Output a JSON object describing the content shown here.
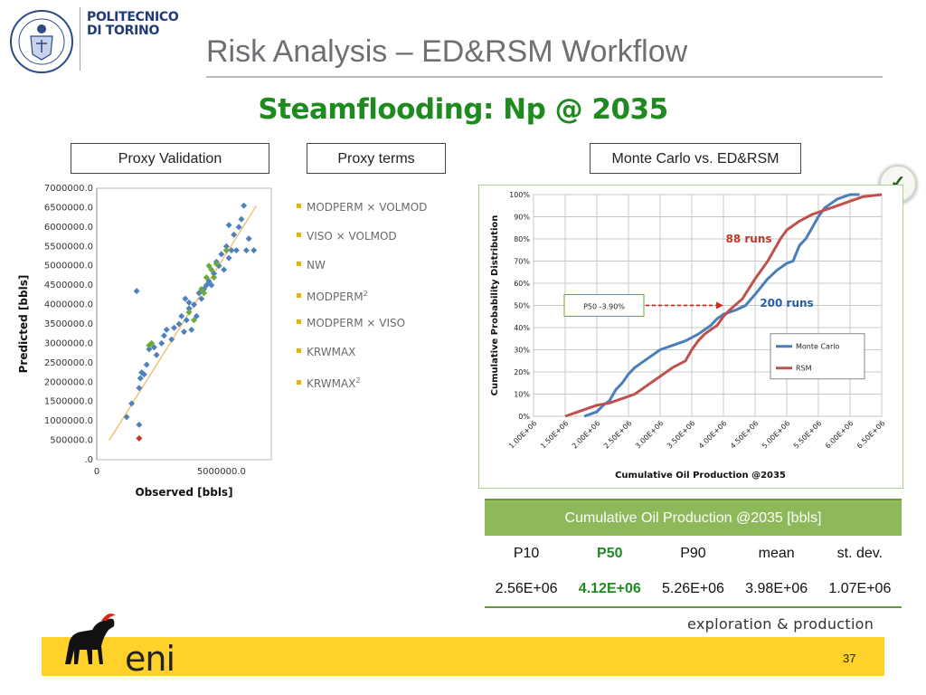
{
  "header": {
    "institution_line1": "POLITECNICO",
    "institution_line2": "DI TORINO",
    "title": "Risk Analysis – ED&RSM Workflow",
    "subtitle": "Steamflooding: Np @ 2035"
  },
  "labels": {
    "proxy_validation": "Proxy Validation",
    "proxy_terms": "Proxy terms",
    "mc_vs_edrsm": "Monte Carlo vs. ED&RSM"
  },
  "proxy_terms": [
    {
      "text": "MODPERM × VOLMOD",
      "sup": ""
    },
    {
      "text": "VISO × VOLMOD",
      "sup": ""
    },
    {
      "text": "NW",
      "sup": ""
    },
    {
      "text": "MODPERM",
      "sup": "2"
    },
    {
      "text": "MODPERM × VISO",
      "sup": ""
    },
    {
      "text": "KRWMAX",
      "sup": ""
    },
    {
      "text": "KRWMAX",
      "sup": "2"
    }
  ],
  "check_icon": "check-icon",
  "chart_data": [
    {
      "type": "scatter",
      "title": "",
      "xlabel": "Observed [bbls]",
      "ylabel": "Predicted [bbls]",
      "x_ticks": [
        "0",
        "5000000.0"
      ],
      "y_ticks": [
        "7000000.0",
        "6500000.0",
        "6000000.0",
        "5500000.0",
        "5000000.0",
        "4500000.0",
        "4000000.0",
        "3500000.0",
        "3000000.0",
        "2500000.0",
        "2000000.0",
        "1500000.0",
        "1000000.0",
        "500000.0",
        ".0"
      ],
      "xlim": [
        0,
        7000000
      ],
      "ylim": [
        0,
        7000000
      ],
      "colors": {
        "blue": "#4f81bd",
        "green": "#6aaa3a",
        "red": "#c0392b",
        "fit": "#f0c27a"
      },
      "fit_line": [
        [
          500000,
          500000
        ],
        [
          6400000,
          6550000
        ]
      ],
      "series": [
        {
          "group": "blue",
          "points": [
            [
              1200000,
              1100000
            ],
            [
              1400000,
              1450000
            ],
            [
              1700000,
              1850000
            ],
            [
              1750000,
              2100000
            ],
            [
              1800000,
              2250000
            ],
            [
              1900000,
              2200000
            ],
            [
              2000000,
              2450000
            ],
            [
              2100000,
              2850000
            ],
            [
              2300000,
              2900000
            ],
            [
              2400000,
              2700000
            ],
            [
              2600000,
              3000000
            ],
            [
              2700000,
              3200000
            ],
            [
              2800000,
              3350000
            ],
            [
              3000000,
              3100000
            ],
            [
              3100000,
              3400000
            ],
            [
              3300000,
              3500000
            ],
            [
              3400000,
              3700000
            ],
            [
              3500000,
              3300000
            ],
            [
              3600000,
              3600000
            ],
            [
              3700000,
              3900000
            ],
            [
              3800000,
              3350000
            ],
            [
              3900000,
              4000000
            ],
            [
              4000000,
              3700000
            ],
            [
              4100000,
              4300000
            ],
            [
              4200000,
              4150000
            ],
            [
              4300000,
              4400000
            ],
            [
              4500000,
              4600000
            ],
            [
              4600000,
              4500000
            ],
            [
              4700000,
              4800000
            ],
            [
              4800000,
              5100000
            ],
            [
              4900000,
              5000000
            ],
            [
              5000000,
              5300000
            ],
            [
              5100000,
              4900000
            ],
            [
              5200000,
              5500000
            ],
            [
              5300000,
              5200000
            ],
            [
              5400000,
              5400000
            ],
            [
              5500000,
              5800000
            ],
            [
              5600000,
              5400000
            ],
            [
              5700000,
              6000000
            ],
            [
              5800000,
              6200000
            ],
            [
              5900000,
              6550000
            ],
            [
              6000000,
              5400000
            ],
            [
              6100000,
              5700000
            ],
            [
              6300000,
              5400000
            ],
            [
              5300000,
              6050000
            ],
            [
              1600000,
              4350000
            ],
            [
              1700000,
              900000
            ],
            [
              3550000,
              4150000
            ],
            [
              3700000,
              4050000
            ],
            [
              4400000,
              4500000
            ]
          ]
        },
        {
          "group": "green",
          "points": [
            [
              2100000,
              2950000
            ],
            [
              2200000,
              3000000
            ],
            [
              3700000,
              3800000
            ],
            [
              3900000,
              3600000
            ],
            [
              4200000,
              4400000
            ],
            [
              4300000,
              4300000
            ],
            [
              4400000,
              4700000
            ],
            [
              4500000,
              5000000
            ],
            [
              4600000,
              4900000
            ],
            [
              4700000,
              4700000
            ],
            [
              4800000,
              5050000
            ],
            [
              5200000,
              5400000
            ]
          ]
        },
        {
          "group": "red",
          "points": [
            [
              1700000,
              550000
            ]
          ]
        }
      ]
    },
    {
      "type": "line",
      "title": "",
      "xlabel": "Cumulative Oil Production @2035",
      "ylabel": "Cumulative Probability Distribution",
      "x_ticks": [
        "1.00E+06",
        "1.50E+06",
        "2.00E+06",
        "2.50E+06",
        "3.00E+06",
        "3.50E+06",
        "4.00E+06",
        "4.50E+06",
        "5.00E+06",
        "5.50E+06",
        "6.00E+06",
        "6.50E+06"
      ],
      "y_ticks": [
        "100%",
        "90%",
        "80%",
        "70%",
        "60%",
        "50%",
        "40%",
        "30%",
        "20%",
        "10%",
        "0%"
      ],
      "xlim": [
        1000000,
        6500000
      ],
      "ylim": [
        0,
        1
      ],
      "legend": "bottom-right",
      "series": [
        {
          "name": "Monte Carlo",
          "color": "#4a7ebb",
          "x": [
            1800000,
            2000000,
            2100000,
            2200000,
            2300000,
            2400000,
            2500000,
            2600000,
            2700000,
            2800000,
            3000000,
            3200000,
            3400000,
            3600000,
            3800000,
            3900000,
            4000000,
            4200000,
            4350000,
            4500000,
            4700000,
            4850000,
            5000000,
            5100000,
            5200000,
            5300000,
            5400000,
            5500000,
            5600000,
            5800000,
            6000000,
            6150000
          ],
          "y": [
            0.0,
            0.02,
            0.05,
            0.07,
            0.12,
            0.15,
            0.19,
            0.22,
            0.24,
            0.26,
            0.3,
            0.32,
            0.34,
            0.37,
            0.41,
            0.44,
            0.46,
            0.48,
            0.5,
            0.55,
            0.62,
            0.66,
            0.69,
            0.7,
            0.77,
            0.8,
            0.85,
            0.9,
            0.94,
            0.98,
            1.0,
            1.0
          ]
        },
        {
          "name": "RSM",
          "color": "#c0504d",
          "x": [
            1500000,
            1800000,
            2000000,
            2200000,
            2400000,
            2600000,
            2800000,
            3000000,
            3200000,
            3400000,
            3500000,
            3600000,
            3700000,
            3800000,
            3900000,
            4000000,
            4100000,
            4300000,
            4500000,
            4700000,
            4800000,
            4900000,
            5000000,
            5200000,
            5400000,
            5600000,
            5800000,
            6000000,
            6200000,
            6500000
          ],
          "y": [
            0.0,
            0.03,
            0.05,
            0.06,
            0.08,
            0.1,
            0.14,
            0.18,
            0.22,
            0.25,
            0.3,
            0.34,
            0.37,
            0.39,
            0.41,
            0.45,
            0.48,
            0.53,
            0.62,
            0.7,
            0.75,
            0.8,
            0.84,
            0.88,
            0.91,
            0.93,
            0.95,
            0.97,
            0.99,
            1.0
          ]
        }
      ],
      "annotations": {
        "mc_runs": "200 runs",
        "rsm_runs": "88 runs",
        "p50_box": "P50 -3.90%"
      }
    }
  ],
  "table": {
    "header": "Cumulative Oil Production @2035 [bbls]",
    "columns": [
      "P10",
      "P50",
      "P90",
      "mean",
      "st. dev."
    ],
    "values": [
      "2.56E+06",
      "4.12E+06",
      "5.26E+06",
      "3.98E+06",
      "1.07E+06"
    ]
  },
  "footer": {
    "division": "exploration & production",
    "logo_text": "eni",
    "page_number": "37"
  }
}
